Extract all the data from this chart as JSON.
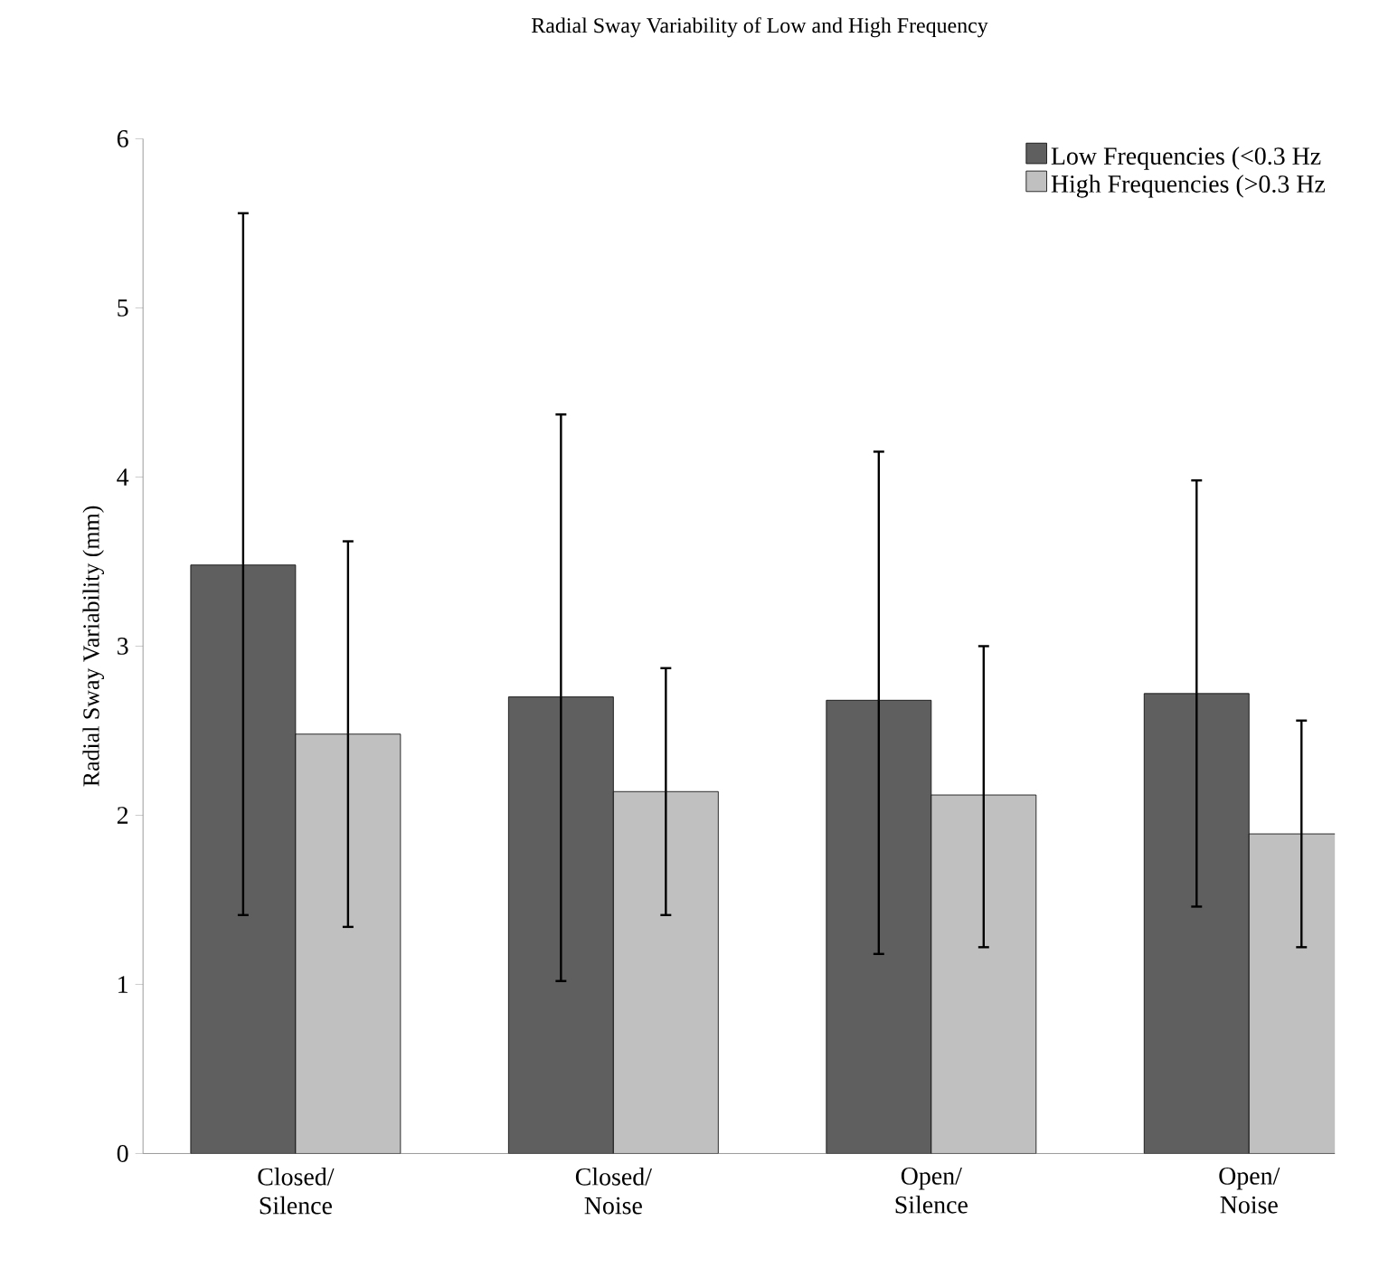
{
  "chart_data": {
    "type": "bar",
    "title": "Radial Sway Variability of Low and High Frequency",
    "ylabel": "Radial Sway Variability (mm)",
    "categories": [
      "Closed/ Silence",
      "Closed/ Noise",
      "Open/ Silence",
      "Open/ Noise"
    ],
    "series": [
      {
        "name": "Low Frequencies (<0.3 Hz",
        "color": "#5f5f5f",
        "values": [
          3.48,
          2.7,
          2.68,
          2.72
        ],
        "errors": [
          [
            1.41,
            5.56
          ],
          [
            1.02,
            4.37
          ],
          [
            1.18,
            4.15
          ],
          [
            1.46,
            3.98
          ]
        ]
      },
      {
        "name": "High Frequencies (>0.3 Hz",
        "color": "#c0c0c0",
        "values": [
          2.48,
          2.14,
          2.12,
          1.89
        ],
        "errors": [
          [
            1.34,
            3.62
          ],
          [
            1.41,
            2.87
          ],
          [
            1.22,
            3.0
          ],
          [
            1.22,
            2.56
          ]
        ]
      }
    ],
    "ylim": [
      0,
      6
    ],
    "yticks": [
      0,
      1,
      2,
      3,
      4,
      5,
      6
    ],
    "legend": "top right",
    "grid": false
  }
}
